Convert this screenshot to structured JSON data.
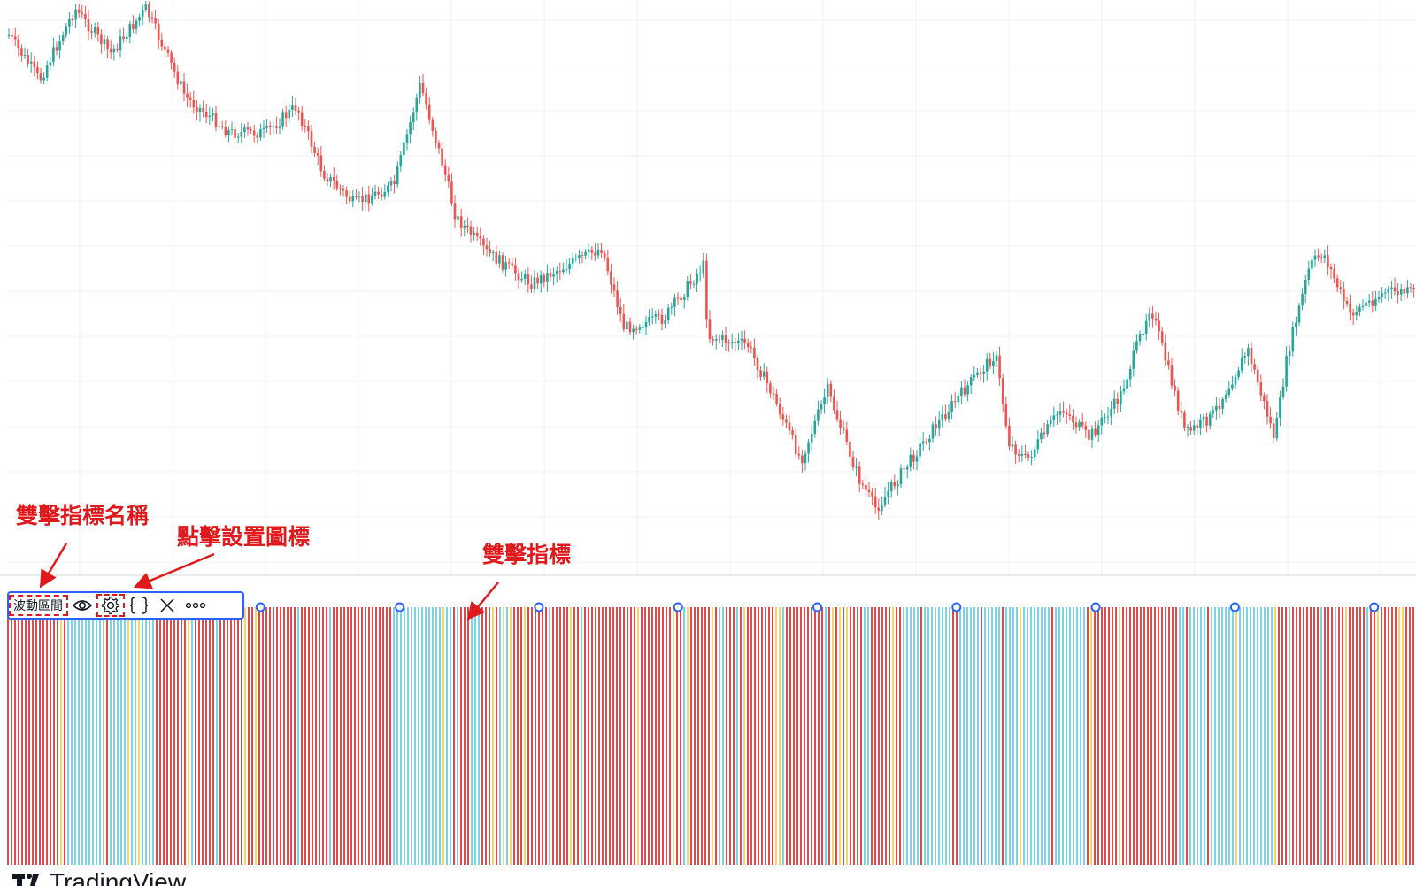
{
  "annotations": {
    "double_click_name": "雙擊指標名稱",
    "click_settings_icon": "點擊設置圖標",
    "double_click_indicator": "雙擊指標"
  },
  "legend": {
    "indicator_name": "波動區間",
    "icons": [
      "eye-icon",
      "gear-icon",
      "braces-icon",
      "close-icon",
      "more-icon"
    ]
  },
  "watermark": {
    "text": "TradingView",
    "logo": "tradingview-logo"
  },
  "colors": {
    "candle_up": "#26a69a",
    "candle_down": "#ef5350",
    "hist_red": "#d11f1f",
    "hist_cyan": "#5ec8dc",
    "hist_yellow": "#f7c948",
    "selection": "#2962ff",
    "annotation": "#e0191c",
    "grid": "#eef0f3"
  }
}
